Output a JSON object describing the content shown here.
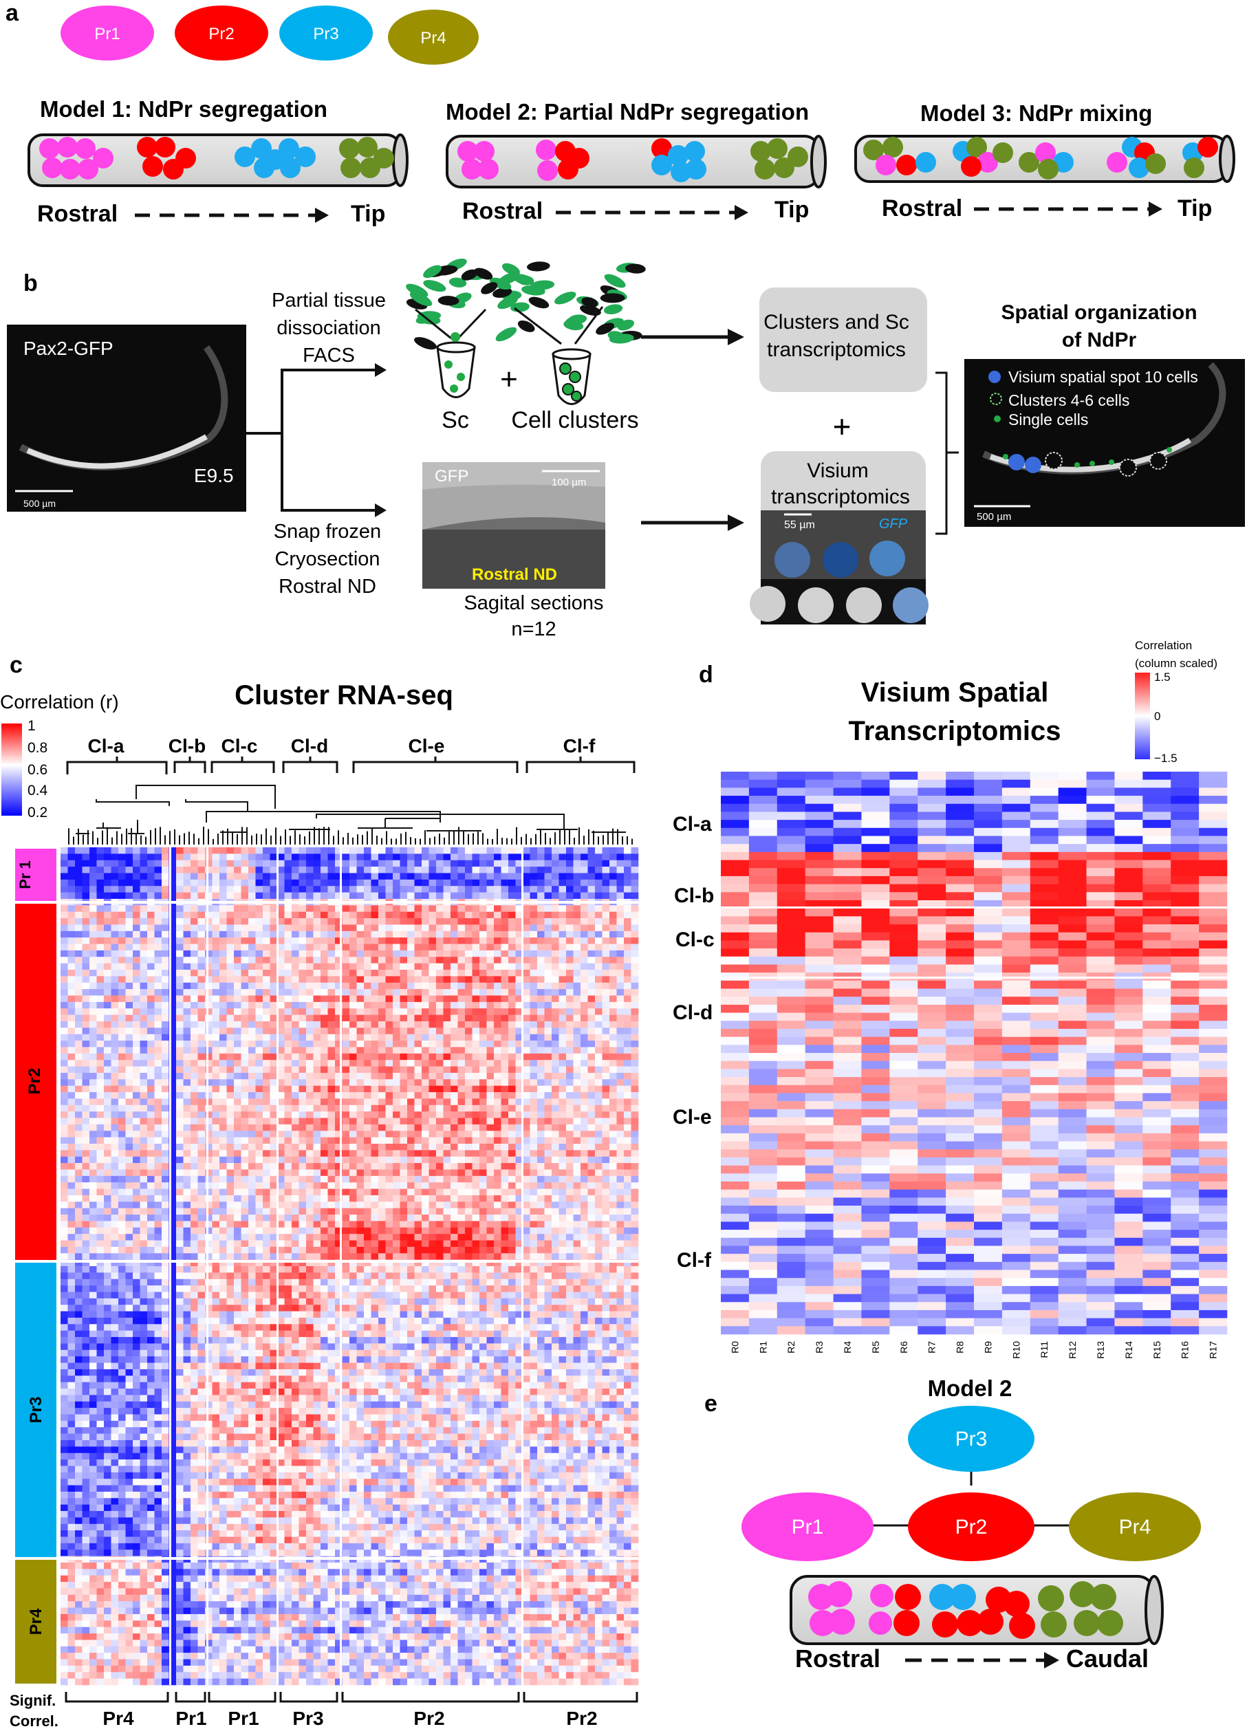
{
  "panel_a": {
    "letter": "a",
    "legend": [
      {
        "label": "Pr1",
        "color": "#ff44e8"
      },
      {
        "label": "Pr2",
        "color": "#ff0000"
      },
      {
        "label": "Pr3",
        "color": "#00b0ee"
      },
      {
        "label": "Pr4",
        "color": "#9a9000"
      }
    ],
    "models": [
      {
        "title": "Model 1: NdPr segregation",
        "left": "Rostral",
        "right": "Tip"
      },
      {
        "title": "Model 2: Partial NdPr segregation",
        "left": "Rostral",
        "right": "Tip"
      },
      {
        "title": "Model 3: NdPr mixing",
        "left": "Rostral",
        "right": "Tip"
      }
    ],
    "colors": {
      "pr1": "#ff44e8",
      "pr2": "#ff0000",
      "pr3": "#1eaaf0",
      "pr4": "#6b8e23",
      "tube": "#d8d8d8"
    }
  },
  "panel_b": {
    "letter": "b",
    "image_label": "Pax2-GFP",
    "stage": "E9.5",
    "scalebar": "500 µm",
    "branch_top": [
      "Partial tissue",
      "dissociation",
      "FACS"
    ],
    "branch_bottom": [
      "Snap frozen",
      "Cryosection",
      "Rostral ND"
    ],
    "sc_label": "Sc",
    "plus": "+",
    "clusters_label": "Cell clusters",
    "box1": [
      "Clusters and Sc",
      "transcriptomics"
    ],
    "box2": [
      "Visium",
      "transcriptomics"
    ],
    "section_gfp": "GFP",
    "section_scale": "100 µm",
    "section_label": "Rostral ND",
    "section_caption": [
      "Sagital sections",
      "n=12"
    ],
    "visium_scale": "55 µm",
    "visium_gfp": "GFP",
    "spatial_title": [
      "Spatial organization",
      "of NdPr"
    ],
    "spatial_legend": [
      "Visium spatial spot 10 cells",
      "Clusters 4-6 cells",
      "Single cells"
    ],
    "spatial_scale": "500 µm"
  },
  "panel_c": {
    "letter": "c",
    "title": "Cluster RNA-seq",
    "legend_title": "Correlation (r)",
    "legend_ticks": [
      "1",
      "0.8",
      "0.6",
      "0.4",
      "0.2"
    ],
    "col_groups": [
      "Cl-a",
      "Cl-b",
      "Cl-c",
      "Cl-d",
      "Cl-e",
      "Cl-f"
    ],
    "row_groups": [
      "Pr 1",
      "Pr2",
      "Pr3",
      "Pr4"
    ],
    "bottom_label_1": "Signif.",
    "bottom_label_2": "Correl.",
    "bottom_groups": [
      "Pr4",
      "Pr1",
      "Pr1",
      "Pr3",
      "Pr2",
      "Pr2"
    ]
  },
  "panel_d": {
    "letter": "d",
    "title": [
      "Visium Spatial",
      "Transcriptomics"
    ],
    "legend_title": [
      "Correlation",
      "(column scaled)"
    ],
    "legend_ticks": [
      "1.5",
      "0",
      "−1.5"
    ],
    "row_groups": [
      "Cl-a",
      "Cl-b",
      "Cl-c",
      "Cl-d",
      "Cl-e",
      "Cl-f"
    ],
    "columns": [
      "R0",
      "R1",
      "R2",
      "R3",
      "R4",
      "R5",
      "R6",
      "R7",
      "R8",
      "R9",
      "R10",
      "R11",
      "R12",
      "R13",
      "R14",
      "R15",
      "R16",
      "R17"
    ]
  },
  "panel_e": {
    "letter": "e",
    "title": "Model 2",
    "nodes": [
      "Pr3",
      "Pr1",
      "Pr2",
      "Pr4"
    ],
    "left": "Rostral",
    "right": "Caudal"
  },
  "chart_data": [
    {
      "type": "heatmap",
      "title": "Cluster RNA-seq",
      "colorbar": {
        "label": "Correlation (r)",
        "range": [
          0.2,
          1
        ],
        "ticks": [
          1,
          0.8,
          0.6,
          0.4,
          0.2
        ]
      },
      "column_groups": [
        "Cl-a",
        "Cl-b",
        "Cl-c",
        "Cl-d",
        "Cl-e",
        "Cl-f"
      ],
      "row_groups": [
        "Pr 1",
        "Pr2",
        "Pr3",
        "Pr4"
      ],
      "significant_correlation": {
        "Cl-a": "Pr4",
        "Cl-b": "Pr1",
        "Cl-c": "Pr1",
        "Cl-d": "Pr3",
        "Cl-e": "Pr2",
        "Cl-f": "Pr2"
      }
    },
    {
      "type": "heatmap",
      "title": "Visium Spatial Transcriptomics",
      "colorbar": {
        "label": "Correlation (column scaled)",
        "range": [
          -1.5,
          1.5
        ],
        "ticks": [
          1.5,
          0,
          -1.5
        ]
      },
      "row_groups": [
        "Cl-a",
        "Cl-b",
        "Cl-c",
        "Cl-d",
        "Cl-e",
        "Cl-f"
      ],
      "columns": [
        "R0",
        "R1",
        "R2",
        "R3",
        "R4",
        "R5",
        "R6",
        "R7",
        "R8",
        "R9",
        "R10",
        "R11",
        "R12",
        "R13",
        "R14",
        "R15",
        "R16",
        "R17"
      ]
    }
  ]
}
